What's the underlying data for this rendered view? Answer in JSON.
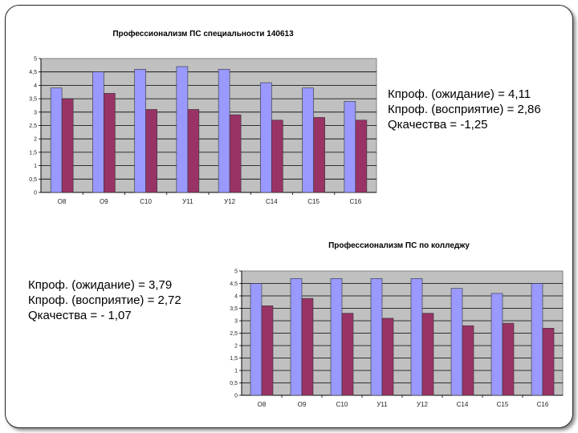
{
  "chart_data": [
    {
      "type": "bar",
      "title": "Профессионализм ПС специальности 140613",
      "categories": [
        "О8",
        "О9",
        "С10",
        "У11",
        "У12",
        "С14",
        "С15",
        "С16"
      ],
      "ylim": [
        0,
        5
      ],
      "yticks": [
        "0",
        "0,5",
        "1",
        "1,5",
        "2",
        "2,5",
        "3",
        "3,5",
        "4",
        "4,5",
        "5"
      ],
      "grid": true,
      "series": [
        {
          "values": [
            3.9,
            4.5,
            4.6,
            4.7,
            4.6,
            4.1,
            3.9,
            3.4
          ],
          "color": "#9999ff"
        },
        {
          "values": [
            3.5,
            3.7,
            3.1,
            3.1,
            2.9,
            2.7,
            2.8,
            2.7
          ],
          "color": "#993366"
        }
      ],
      "plot_bg": "#c0c0c0"
    },
    {
      "type": "bar",
      "title": "Профессионализм ПС по колледжу",
      "categories": [
        "О8",
        "О9",
        "С10",
        "У11",
        "У12",
        "С14",
        "С15",
        "С16"
      ],
      "ylim": [
        0,
        5
      ],
      "yticks": [
        "0",
        "0,5",
        "1",
        "1,5",
        "2",
        "2,5",
        "3",
        "3,5",
        "4",
        "4,5",
        "5"
      ],
      "grid": true,
      "series": [
        {
          "values": [
            4.5,
            4.7,
            4.7,
            4.7,
            4.7,
            4.3,
            4.1,
            4.5
          ],
          "color": "#9999ff"
        },
        {
          "values": [
            3.6,
            3.9,
            3.3,
            3.1,
            3.3,
            2.8,
            2.9,
            2.7
          ],
          "color": "#993366"
        }
      ],
      "plot_bg": "#c0c0c0"
    }
  ],
  "notes": {
    "top": [
      "Кпроф. (ожидание) = 4,11",
      "Кпроф. (восприятие) = 2,86",
      "Qкачества = -1,25"
    ],
    "bottom": [
      "Кпроф. (ожидание) = 3,79",
      "Кпроф. (восприятие) = 2,72",
      "Qкачества = - 1,07"
    ]
  }
}
